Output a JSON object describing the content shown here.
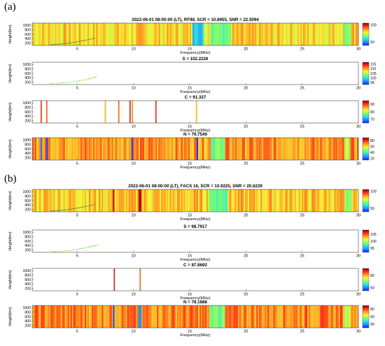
{
  "figure": {
    "panel_a_label": "(a)",
    "panel_b_label": "(b)"
  },
  "colormap": [
    "#1a1aff",
    "#1f8cff",
    "#2fe0e0",
    "#7dff6a",
    "#f5f53a",
    "#ff9a22",
    "#ff2a1a",
    "#8a0000"
  ],
  "chart_data": [
    {
      "group": "a",
      "type": "heatmap",
      "title": "2022-06-01 08:00:00 (LT), RFIM, SCR = 10.8955, SNR = 22.5094",
      "xlabel": "Frequency(MHz)",
      "ylabel": "Height(km)",
      "xlim": [
        1,
        30
      ],
      "ylim": [
        100,
        1100
      ],
      "xticks": [
        "5",
        "10",
        "15",
        "20",
        "25",
        "30"
      ],
      "yticks": [
        "200",
        "400",
        "600",
        "800",
        "1000"
      ],
      "colorbar_ticks": [
        "100",
        "50"
      ],
      "colorbar_range": [
        40,
        105
      ],
      "background_level": 0.62,
      "bright_bands": [],
      "dim_bands": [
        [
          15.2,
          16.2,
          0.25
        ],
        [
          16.9,
          18.6,
          0.4
        ],
        [
          28.7,
          29.4,
          0.45
        ]
      ],
      "trace": true
    },
    {
      "group": "a",
      "type": "scatter",
      "title": "S = 102.2226",
      "xlabel": "Frequency(MHz)",
      "ylabel": "Height(km)",
      "xlim": [
        1,
        30
      ],
      "ylim": [
        100,
        1100
      ],
      "xticks": [
        "5",
        "10",
        "15",
        "20",
        "25",
        "30"
      ],
      "yticks": [
        "200",
        "400",
        "600",
        "800",
        "1000"
      ],
      "colorbar_ticks": [
        "115",
        "110",
        "105",
        "100",
        "95"
      ],
      "colorbar_range": [
        93,
        117
      ],
      "x": [
        2.6,
        3.4,
        4.1,
        4.8,
        5.3,
        5.8,
        6.3,
        6.8
      ],
      "y": [
        130,
        160,
        190,
        230,
        280,
        330,
        390,
        460
      ]
    },
    {
      "group": "a",
      "type": "heatmap",
      "title": "C = 91.327",
      "xlabel": "Frequency(MHz)",
      "ylabel": "Height(km)",
      "xlim": [
        1,
        30
      ],
      "ylim": [
        100,
        1100
      ],
      "xticks": [
        "5",
        "10",
        "15",
        "20",
        "25",
        "30"
      ],
      "yticks": [
        "200",
        "400",
        "600",
        "800",
        "1000"
      ],
      "colorbar_ticks": [
        "90",
        "80",
        "70"
      ],
      "colorbar_range": [
        65,
        95
      ],
      "background_level": -1,
      "lines": [
        [
          1.8,
          "#d94a1a"
        ],
        [
          2.3,
          "#ff6a1a"
        ],
        [
          7.5,
          "#e8c21a"
        ],
        [
          8.7,
          "#ff6a22"
        ],
        [
          9.7,
          "#d4302a"
        ],
        [
          9.9,
          "#f0a020"
        ],
        [
          12.0,
          "#e04020"
        ],
        [
          15.6,
          "#f2c020"
        ]
      ]
    },
    {
      "group": "a",
      "type": "heatmap",
      "title": "N = 79.7549",
      "xlabel": "Frequency(MHz)",
      "ylabel": "Height(km)",
      "xlim": [
        1,
        30
      ],
      "ylim": [
        100,
        1100
      ],
      "xticks": [
        "5",
        "10",
        "15",
        "20",
        "25",
        "30"
      ],
      "yticks": [
        "200",
        "400",
        "600",
        "800",
        "1000"
      ],
      "colorbar_ticks": [
        "80",
        "60",
        "40",
        "20"
      ],
      "colorbar_range": [
        15,
        90
      ],
      "background_level": 0.72,
      "bright_bands": [],
      "dim_bands": [
        [
          1.8,
          1.9,
          0.1
        ],
        [
          2.3,
          2.4,
          0.1
        ],
        [
          7.5,
          7.6,
          0.1
        ],
        [
          9.8,
          9.9,
          0.1
        ],
        [
          15.6,
          15.7,
          0.1
        ],
        [
          16.9,
          18.2,
          0.42
        ],
        [
          28.8,
          29.3,
          0.5
        ]
      ],
      "trace": false
    },
    {
      "group": "b",
      "type": "heatmap",
      "title": "2022-06-01 08:00:00 (LT), FACS 16, SCR = 10.9225, SNR = 20.6229",
      "xlabel": "Frequency(MHz)",
      "ylabel": "Height(km)",
      "xlim": [
        1,
        30
      ],
      "ylim": [
        100,
        1100
      ],
      "xticks": [
        "5",
        "10",
        "15",
        "20",
        "25",
        "30"
      ],
      "yticks": [
        "200",
        "400",
        "600",
        "800",
        "1000"
      ],
      "colorbar_ticks": [
        "100",
        "50"
      ],
      "colorbar_range": [
        40,
        105
      ],
      "background_level": 0.64,
      "bright_bands": [
        [
          8.2,
          8.35,
          0.95
        ],
        [
          10.5,
          10.7,
          0.95
        ]
      ],
      "dim_bands": [
        [
          16.8,
          18.4,
          0.4
        ],
        [
          28.7,
          29.4,
          0.45
        ]
      ],
      "trace": true
    },
    {
      "group": "b",
      "type": "scatter",
      "title": "S = 98.7917",
      "xlabel": "Frequency(MHz)",
      "ylabel": "Height(km)",
      "xlim": [
        1,
        30
      ],
      "ylim": [
        100,
        1100
      ],
      "xticks": [
        "5",
        "10",
        "15",
        "20",
        "25",
        "30"
      ],
      "yticks": [
        "200",
        "400",
        "600",
        "800",
        "1000"
      ],
      "colorbar_ticks": [
        "105",
        "100",
        "95"
      ],
      "colorbar_range": [
        92,
        108
      ],
      "x": [
        2.7,
        3.5,
        4.2,
        4.9,
        5.4,
        5.9,
        6.4,
        6.9
      ],
      "y": [
        120,
        150,
        180,
        220,
        270,
        320,
        380,
        440
      ]
    },
    {
      "group": "b",
      "type": "heatmap",
      "title": "C = 87.8692",
      "xlabel": "Frequency(MHz)",
      "ylabel": "Height(km)",
      "xlim": [
        1,
        30
      ],
      "ylim": [
        100,
        1100
      ],
      "xticks": [
        "5",
        "10",
        "15",
        "20",
        "25",
        "30"
      ],
      "yticks": [
        "200",
        "400",
        "600",
        "800",
        "1000"
      ],
      "colorbar_ticks": [
        "80",
        "60"
      ],
      "colorbar_range": [
        55,
        92
      ],
      "background_level": -1,
      "lines": [
        [
          8.3,
          "#d4302a"
        ],
        [
          10.6,
          "#e07a22"
        ]
      ]
    },
    {
      "group": "b",
      "type": "heatmap",
      "title": "N = 78.1688",
      "xlabel": "Frequency(MHz)",
      "ylabel": "Height(km)",
      "xlim": [
        1,
        30
      ],
      "ylim": [
        100,
        1100
      ],
      "xticks": [
        "5",
        "10",
        "15",
        "20",
        "25",
        "30"
      ],
      "yticks": [
        "200",
        "400",
        "600",
        "800",
        "1000"
      ],
      "colorbar_ticks": [
        "80",
        "60",
        "40"
      ],
      "colorbar_range": [
        30,
        90
      ],
      "background_level": 0.74,
      "bright_bands": [],
      "dim_bands": [
        [
          8.2,
          8.35,
          0.1
        ],
        [
          10.5,
          10.7,
          0.1
        ],
        [
          16.8,
          18.1,
          0.42
        ],
        [
          28.8,
          29.3,
          0.5
        ]
      ],
      "trace": false
    }
  ]
}
